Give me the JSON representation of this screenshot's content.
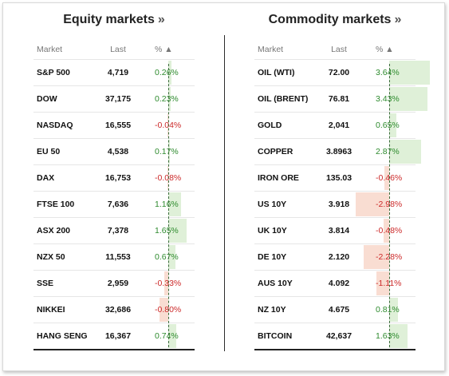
{
  "equity": {
    "title": "Equity markets",
    "title_arrow": "»",
    "header": {
      "market": "Market",
      "last": "Last",
      "pct": "% ▲"
    },
    "rows": [
      {
        "name": "S&P 500",
        "last": "4,719",
        "pct": "0.26%",
        "change": 0.26
      },
      {
        "name": "DOW",
        "last": "37,175",
        "pct": "0.23%",
        "change": 0.23
      },
      {
        "name": "NASDAQ",
        "last": "16,555",
        "pct": "-0.04%",
        "change": -0.04
      },
      {
        "name": "EU 50",
        "last": "4,538",
        "pct": "0.17%",
        "change": 0.17
      },
      {
        "name": "DAX",
        "last": "16,753",
        "pct": "-0.08%",
        "change": -0.08
      },
      {
        "name": "FTSE 100",
        "last": "7,636",
        "pct": "1.16%",
        "change": 1.16
      },
      {
        "name": "ASX 200",
        "last": "7,378",
        "pct": "1.65%",
        "change": 1.65
      },
      {
        "name": "NZX 50",
        "last": "11,553",
        "pct": "0.67%",
        "change": 0.67
      },
      {
        "name": "SSE",
        "last": "2,959",
        "pct": "-0.33%",
        "change": -0.33
      },
      {
        "name": "NIKKEI",
        "last": "32,686",
        "pct": "-0.80%",
        "change": -0.8
      },
      {
        "name": "HANG SENG",
        "last": "16,367",
        "pct": "0.74%",
        "change": 0.74
      }
    ]
  },
  "commodity": {
    "title": "Commodity markets",
    "title_arrow": "»",
    "header": {
      "market": "Market",
      "last": "Last",
      "pct": "% ▲"
    },
    "rows": [
      {
        "name": "OIL (WTI)",
        "last": "72.00",
        "pct": "3.64%",
        "change": 3.64
      },
      {
        "name": "OIL (BRENT)",
        "last": "76.81",
        "pct": "3.43%",
        "change": 3.43
      },
      {
        "name": "GOLD",
        "last": "2,041",
        "pct": "0.65%",
        "change": 0.65
      },
      {
        "name": "COPPER",
        "last": "3.8963",
        "pct": "2.87%",
        "change": 2.87
      },
      {
        "name": "IRON ORE",
        "last": "135.03",
        "pct": "-0.46%",
        "change": -0.46
      },
      {
        "name": "US 10Y",
        "last": "3.918",
        "pct": "-2.98%",
        "change": -2.98
      },
      {
        "name": "UK 10Y",
        "last": "3.814",
        "pct": "-0.48%",
        "change": -0.48
      },
      {
        "name": "DE 10Y",
        "last": "2.120",
        "pct": "-2.28%",
        "change": -2.28
      },
      {
        "name": "AUS 10Y",
        "last": "4.092",
        "pct": "-1.11%",
        "change": -1.11
      },
      {
        "name": "NZ 10Y",
        "last": "4.675",
        "pct": "0.81%",
        "change": 0.81
      },
      {
        "name": "BITCOIN",
        "last": "42,637",
        "pct": "1.63%",
        "change": 1.63
      }
    ]
  },
  "colors": {
    "positive": "#2e8b2e",
    "negative": "#cc2a2a",
    "positive_bar": "#dff0d8",
    "negative_bar": "#f9ddd2"
  }
}
